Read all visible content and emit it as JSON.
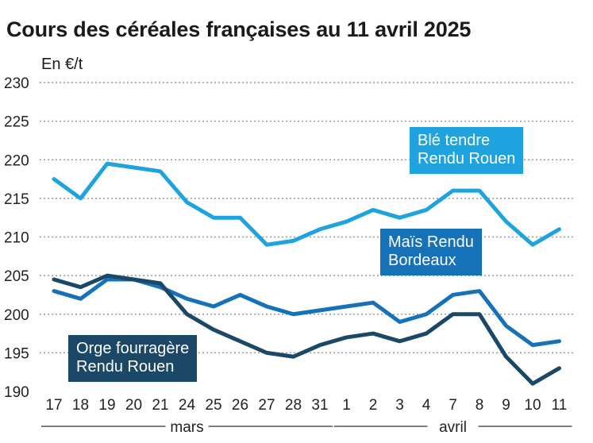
{
  "title": "Cours des céréales françaises au 11 avril 2025",
  "unit_label": "En €/t",
  "chart_data": {
    "type": "line",
    "title": "Cours des céréales françaises au 11 avril 2025",
    "ylabel": "En €/t",
    "xlabel": "",
    "ylim": [
      190,
      230
    ],
    "yticks": [
      190,
      195,
      200,
      205,
      210,
      215,
      220,
      225,
      230
    ],
    "grid": true,
    "categories": [
      "17",
      "18",
      "19",
      "20",
      "21",
      "24",
      "25",
      "26",
      "27",
      "28",
      "31",
      "1",
      "2",
      "3",
      "4",
      "7",
      "8",
      "9",
      "10",
      "11"
    ],
    "months": [
      {
        "label": "mars",
        "from": 0,
        "to": 10
      },
      {
        "label": "avril",
        "from": 11,
        "to": 19
      }
    ],
    "series": [
      {
        "name": "Blé tendre Rendu Rouen",
        "color": "#1fa3df",
        "values": [
          217.5,
          215,
          219.5,
          219,
          218.5,
          214.5,
          212.5,
          212.5,
          209,
          209.5,
          211,
          212,
          213.5,
          212.5,
          213.5,
          216,
          216,
          212,
          209,
          211
        ]
      },
      {
        "name": "Maïs Rendu Bordeaux",
        "color": "#1672b8",
        "values": [
          203,
          202,
          204.5,
          204.5,
          203.5,
          202,
          201,
          202.5,
          201,
          200,
          200.5,
          201,
          201.5,
          199,
          200,
          202.5,
          203,
          198.5,
          196,
          196.5
        ]
      },
      {
        "name": "Orge fourragère Rendu Rouen",
        "color": "#1b4866",
        "values": [
          204.5,
          203.5,
          205,
          204.5,
          204,
          200,
          198,
          196.5,
          195,
          194.5,
          196,
          197,
          197.5,
          196.5,
          197.5,
          200,
          200,
          194.5,
          191,
          193
        ]
      }
    ],
    "labels": [
      {
        "series": 0,
        "line1": "Blé tendre",
        "line2": "Rendu Rouen",
        "color": "#1fa3df"
      },
      {
        "series": 1,
        "line1": "Maïs Rendu",
        "line2": "Bordeaux",
        "color": "#1672b8"
      },
      {
        "series": 2,
        "line1": "Orge fourragère",
        "line2": "Rendu Rouen",
        "color": "#1b4866"
      }
    ]
  }
}
